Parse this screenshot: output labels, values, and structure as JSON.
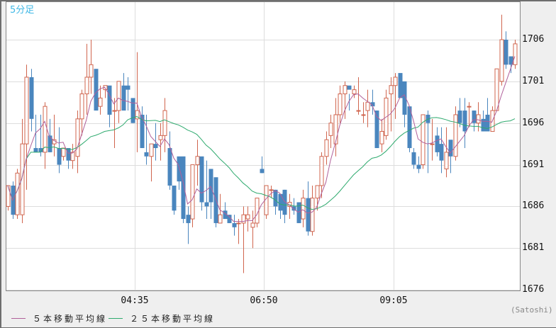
{
  "title": "5分足",
  "credit": "(Satoshi)",
  "legend": [
    {
      "label": "５本移動平均線",
      "color": "#b0609a"
    },
    {
      "label": "２５本移動平均線",
      "color": "#2eaa6e"
    }
  ],
  "colors": {
    "up": "#d0654e",
    "down": "#4a86be",
    "grid": "#dddddd",
    "plot_bg": "#ffffff",
    "axis_bg": "#efefef"
  },
  "chart_data": {
    "type": "candlestick",
    "title": "5分足",
    "xlabel": "",
    "ylabel": "",
    "ylim": [
      1676,
      1709
    ],
    "y_ticks": [
      1706,
      1701,
      1696,
      1691,
      1686,
      1681,
      1676
    ],
    "x_ticks": [
      {
        "label": "04:35",
        "index": 25
      },
      {
        "label": "06:50",
        "index": 55
      },
      {
        "label": "09:05",
        "index": 84
      }
    ],
    "grid": true,
    "legend_position": "bottom",
    "series_labels": [
      "５本移動平均線",
      "２５本移動平均線"
    ],
    "ohlc": [
      [
        1686.0,
        1688.5,
        1685.5,
        1688.5
      ],
      [
        1688.5,
        1689.0,
        1684.5,
        1685.0
      ],
      [
        1685.0,
        1690.5,
        1684.5,
        1690.0
      ],
      [
        1685.0,
        1696.5,
        1684.0,
        1693.5
      ],
      [
        1693.5,
        1703.0,
        1688.0,
        1701.5
      ],
      [
        1701.5,
        1702.5,
        1695.0,
        1696.5
      ],
      [
        1693.0,
        1697.0,
        1692.5,
        1692.5
      ],
      [
        1693.0,
        1697.0,
        1692.0,
        1692.5
      ],
      [
        1692.5,
        1698.5,
        1690.5,
        1698.0
      ],
      [
        1694.5,
        1696.5,
        1692.5,
        1692.5
      ],
      [
        1693.5,
        1697.0,
        1692.0,
        1694.0
      ],
      [
        1693.0,
        1695.5,
        1690.0,
        1691.0
      ],
      [
        1692.0,
        1693.0,
        1691.5,
        1693.0
      ],
      [
        1693.0,
        1692.0,
        1690.5,
        1691.5
      ],
      [
        1691.5,
        1693.5,
        1690.5,
        1692.5
      ],
      [
        1692.0,
        1697.5,
        1690.0,
        1696.5
      ],
      [
        1696.5,
        1700.0,
        1694.5,
        1699.5
      ],
      [
        1699.5,
        1705.5,
        1697.0,
        1701.5
      ],
      [
        1701.5,
        1706.0,
        1699.5,
        1703.0
      ],
      [
        1702.5,
        1699.0,
        1697.5,
        1697.5
      ],
      [
        1698.0,
        1700.5,
        1697.0,
        1699.0
      ],
      [
        1700.0,
        1700.5,
        1699.0,
        1700.5
      ],
      [
        1700.5,
        1698.5,
        1695.5,
        1697.0
      ],
      [
        1697.5,
        1699.0,
        1693.0,
        1697.5
      ],
      [
        1697.5,
        1701.0,
        1696.0,
        1701.0
      ],
      [
        1700.5,
        1702.0,
        1698.0,
        1697.5
      ],
      [
        1700.5,
        1701.5,
        1697.5,
        1700.0
      ],
      [
        1699.0,
        1698.0,
        1696.0,
        1696.0
      ],
      [
        1696.5,
        1704.5,
        1692.5,
        1697.5
      ],
      [
        1697.0,
        1698.0,
        1693.5,
        1693.0
      ],
      [
        1692.5,
        1697.0,
        1691.0,
        1692.0
      ],
      [
        1692.0,
        1693.5,
        1689.0,
        1693.5
      ],
      [
        1693.5,
        1696.0,
        1691.5,
        1693.0
      ],
      [
        1694.0,
        1696.0,
        1691.5,
        1694.5
      ],
      [
        1694.5,
        1699.0,
        1692.5,
        1697.5
      ],
      [
        1693.0,
        1695.0,
        1688.0,
        1688.5
      ],
      [
        1688.5,
        1688.0,
        1685.0,
        1685.5
      ],
      [
        1692.0,
        1690.5,
        1688.0,
        1689.0
      ],
      [
        1692.0,
        1689.5,
        1684.0,
        1684.5
      ],
      [
        1685.0,
        1686.0,
        1681.5,
        1684.0
      ],
      [
        1684.5,
        1691.0,
        1683.5,
        1691.0
      ],
      [
        1691.0,
        1694.0,
        1688.5,
        1692.0
      ],
      [
        1692.0,
        1690.5,
        1685.5,
        1686.5
      ],
      [
        1686.5,
        1691.5,
        1684.5,
        1686.0
      ],
      [
        1690.5,
        1688.0,
        1684.5,
        1686.5
      ],
      [
        1689.5,
        1686.5,
        1683.5,
        1684.0
      ],
      [
        1684.0,
        1687.5,
        1684.5,
        1685.0
      ],
      [
        1685.5,
        1686.5,
        1684.5,
        1684.5
      ],
      [
        1685.0,
        1685.0,
        1684.0,
        1684.0
      ],
      [
        1684.0,
        1685.0,
        1682.5,
        1683.5
      ],
      [
        1684.0,
        1684.5,
        1681.5,
        1684.0
      ],
      [
        1684.0,
        1686.0,
        1678.0,
        1685.0
      ],
      [
        1684.5,
        1686.0,
        1683.0,
        1685.0
      ],
      [
        1683.5,
        1685.5,
        1681.0,
        1684.0
      ],
      [
        1684.0,
        1687.0,
        1683.5,
        1687.0
      ],
      [
        1690.5,
        1692.0,
        1690.0,
        1690.0
      ],
      [
        1685.0,
        1688.5,
        1684.5,
        1688.5
      ],
      [
        1688.0,
        1688.5,
        1687.0,
        1688.0
      ],
      [
        1688.0,
        1688.0,
        1685.0,
        1686.0
      ],
      [
        1687.5,
        1686.5,
        1684.5,
        1685.5
      ],
      [
        1688.0,
        1688.0,
        1684.0,
        1685.0
      ],
      [
        1686.0,
        1687.5,
        1684.5,
        1686.5
      ],
      [
        1686.0,
        1687.0,
        1685.0,
        1685.5
      ],
      [
        1686.5,
        1686.5,
        1684.0,
        1684.0
      ],
      [
        1684.5,
        1688.0,
        1683.5,
        1687.0
      ],
      [
        1687.0,
        1689.0,
        1682.5,
        1683.0
      ],
      [
        1683.0,
        1688.5,
        1682.5,
        1687.0
      ],
      [
        1687.0,
        1688.5,
        1685.5,
        1688.5
      ],
      [
        1688.5,
        1692.5,
        1687.0,
        1692.0
      ],
      [
        1692.0,
        1695.0,
        1691.0,
        1694.0
      ],
      [
        1694.5,
        1697.0,
        1693.0,
        1696.0
      ],
      [
        1693.5,
        1699.0,
        1692.0,
        1697.0
      ],
      [
        1697.0,
        1700.5,
        1696.0,
        1699.5
      ],
      [
        1699.5,
        1701.0,
        1696.5,
        1700.5
      ],
      [
        1700.5,
        1699.5,
        1697.5,
        1700.0
      ],
      [
        1699.5,
        1700.5,
        1699.0,
        1700.0
      ],
      [
        1697.5,
        1701.5,
        1697.0,
        1697.5
      ],
      [
        1697.0,
        1698.5,
        1696.0,
        1697.0
      ],
      [
        1697.5,
        1700.0,
        1695.5,
        1698.5
      ],
      [
        1698.5,
        1700.0,
        1697.0,
        1698.0
      ],
      [
        1697.5,
        1697.5,
        1693.0,
        1693.0
      ],
      [
        1693.5,
        1696.5,
        1692.5,
        1695.0
      ],
      [
        1694.5,
        1700.0,
        1694.0,
        1699.0
      ],
      [
        1699.5,
        1701.5,
        1695.0,
        1700.5
      ],
      [
        1700.5,
        1702.0,
        1696.5,
        1701.5
      ],
      [
        1702.0,
        1701.5,
        1700.0,
        1699.0
      ],
      [
        1701.0,
        1700.5,
        1695.5,
        1697.0
      ],
      [
        1698.0,
        1694.5,
        1692.5,
        1693.0
      ],
      [
        1692.5,
        1693.0,
        1690.5,
        1691.0
      ],
      [
        1691.0,
        1692.0,
        1690.0,
        1690.5
      ],
      [
        1691.0,
        1694.0,
        1690.5,
        1697.0
      ],
      [
        1697.0,
        1697.5,
        1690.0,
        1696.0
      ],
      [
        1693.5,
        1696.5,
        1691.5,
        1693.5
      ],
      [
        1694.5,
        1695.5,
        1692.0,
        1692.5
      ],
      [
        1693.5,
        1695.5,
        1690.0,
        1691.5
      ],
      [
        1690.5,
        1695.5,
        1689.5,
        1692.5
      ],
      [
        1694.0,
        1693.5,
        1690.0,
        1692.0
      ],
      [
        1692.0,
        1698.0,
        1691.5,
        1697.0
      ],
      [
        1697.5,
        1699.0,
        1695.5,
        1696.0
      ],
      [
        1697.5,
        1699.0,
        1693.0,
        1695.0
      ],
      [
        1698.0,
        1698.5,
        1695.5,
        1698.0
      ],
      [
        1697.5,
        1697.5,
        1695.0,
        1696.0
      ],
      [
        1696.0,
        1698.5,
        1695.0,
        1697.0
      ],
      [
        1696.5,
        1697.5,
        1695.0,
        1695.0
      ],
      [
        1697.0,
        1699.0,
        1695.5,
        1695.0
      ],
      [
        1695.0,
        1698.0,
        1695.0,
        1697.5
      ],
      [
        1697.5,
        1702.5,
        1697.5,
        1702.5
      ],
      [
        1701.0,
        1709.0,
        1700.5,
        1706.0
      ],
      [
        1706.0,
        1707.0,
        1702.5,
        1703.0
      ],
      [
        1704.0,
        1704.0,
        1702.0,
        1703.0
      ],
      [
        1703.0,
        1706.0,
        1702.5,
        1705.5
      ]
    ]
  }
}
